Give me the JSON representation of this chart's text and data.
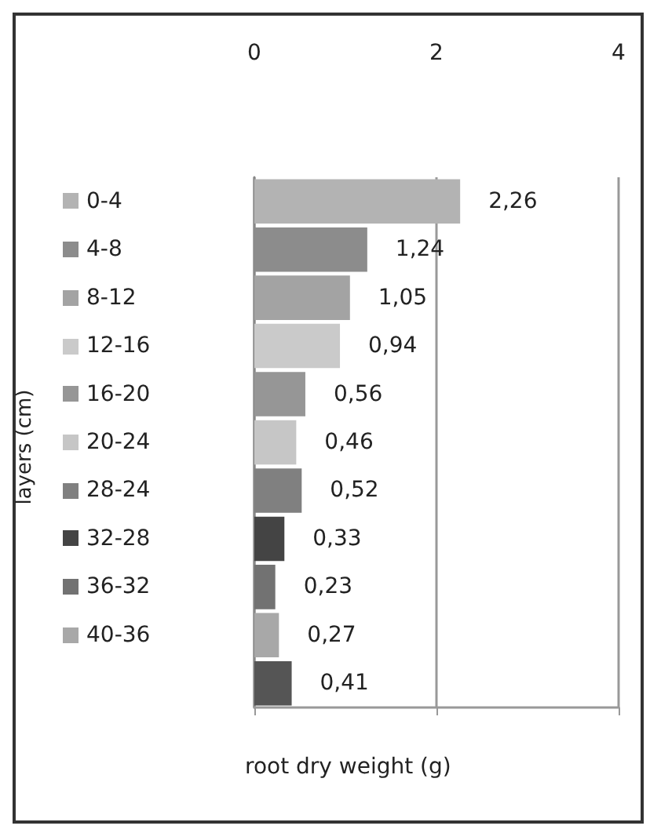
{
  "chart_data": {
    "type": "bar",
    "orientation": "horizontal",
    "xlabel": "root dry weight (g)",
    "ylabel": "layers (cm)",
    "categories": [
      "0-4",
      "4-8",
      "8-12",
      "12-16",
      "16-20",
      "20-24",
      "28-24",
      "32-28",
      "36-32",
      "40-36",
      null
    ],
    "xlim": [
      0,
      4
    ],
    "xticks": [
      0,
      2,
      4
    ],
    "grid": "x",
    "colors": [
      "#b3b3b3",
      "#8c8c8c",
      "#a3a3a3",
      "#cacaca",
      "#969696",
      "#c6c6c6",
      "#808080",
      "#444444",
      "#727272",
      "#a8a8a8",
      "#555555"
    ],
    "values": [
      2.26,
      1.24,
      1.05,
      0.94,
      0.56,
      0.46,
      0.52,
      0.33,
      0.23,
      0.27,
      0.41
    ],
    "value_labels": [
      "2,26",
      "1,24",
      "1,05",
      "0,94",
      "0,56",
      "0,46",
      "0,52",
      "0,33",
      "0,23",
      "0,27",
      "0,41"
    ]
  }
}
